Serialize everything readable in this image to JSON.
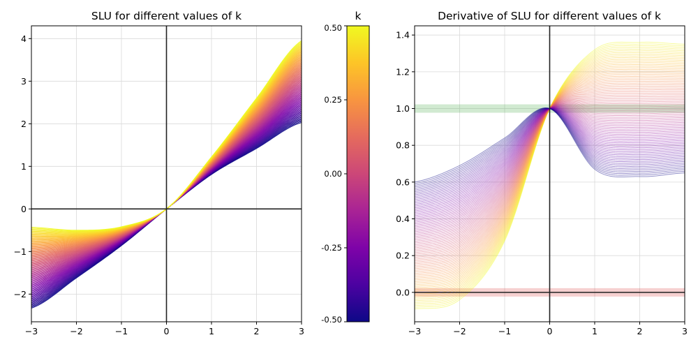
{
  "chart_data": [
    {
      "type": "line",
      "title": "SLU for different values of k",
      "xlabel": "",
      "ylabel": "",
      "xlim": [
        -3,
        3
      ],
      "ylim": [
        -2.65,
        4.3
      ],
      "xticks": [
        "−3",
        "−2",
        "−1",
        "0",
        "1",
        "2",
        "3"
      ],
      "yticks": [
        "−2",
        "−1",
        "0",
        "1",
        "2",
        "3",
        "4"
      ],
      "grid": true,
      "k_range": [
        -0.5,
        0.5
      ],
      "colormap": "plasma",
      "series": [
        {
          "k": -0.5,
          "x": [
            -3,
            -2,
            -1,
            0,
            1,
            2,
            3
          ],
          "y": [
            -2.33,
            -1.62,
            -0.86,
            0.0,
            0.81,
            1.42,
            2.03
          ]
        },
        {
          "k": 0.0,
          "x": [
            -3,
            -2,
            -1,
            0,
            1,
            2,
            3
          ],
          "y": [
            -1.35,
            -1.05,
            -0.65,
            0.0,
            1.0,
            2.0,
            3.0
          ]
        },
        {
          "k": 0.5,
          "x": [
            -3,
            -2,
            -1,
            0,
            1,
            2,
            3
          ],
          "y": [
            -0.43,
            -0.5,
            -0.42,
            0.0,
            1.22,
            2.6,
            3.95
          ]
        }
      ]
    },
    {
      "type": "heatmap",
      "title": "k",
      "colorbar_range": [
        -0.5,
        0.5
      ],
      "ticks": [
        "0.50",
        "0.25",
        "0.00",
        "-0.25",
        "-0.50"
      ],
      "colormap": "plasma"
    },
    {
      "type": "line",
      "title": "Derivative of SLU for different values of k",
      "xlabel": "",
      "ylabel": "",
      "xlim": [
        -3,
        3
      ],
      "ylim": [
        -0.16,
        1.45
      ],
      "xticks": [
        "−3",
        "−2",
        "−1",
        "0",
        "1",
        "2",
        "3"
      ],
      "yticks": [
        "0.0",
        "0.2",
        "0.4",
        "0.6",
        "0.8",
        "1.0",
        "1.2",
        "1.4"
      ],
      "grid": true,
      "reference_bands": [
        {
          "y": 1.0,
          "color": "#2ca02c"
        },
        {
          "y": 0.0,
          "color": "#d62728"
        }
      ],
      "series": [
        {
          "k": -0.5,
          "x": [
            -3,
            -2,
            -1,
            0,
            1,
            2,
            3
          ],
          "y": [
            0.6,
            0.69,
            0.84,
            1.0,
            0.67,
            0.63,
            0.65
          ]
        },
        {
          "k": 0.5,
          "x": [
            -3,
            -2,
            -1,
            0,
            1,
            2,
            3
          ],
          "y": [
            -0.09,
            -0.04,
            0.28,
            1.0,
            1.32,
            1.36,
            1.35
          ]
        }
      ]
    }
  ],
  "colors": {
    "axis_line": "#000000",
    "grid": "#d9d9d9",
    "band_green": "#2ca02c",
    "band_red": "#d62728"
  }
}
